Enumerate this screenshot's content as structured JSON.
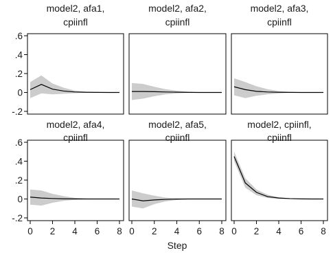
{
  "chart_data": {
    "type": "line",
    "xlabel": "Step",
    "xlim": [
      0,
      8
    ],
    "ylim": [
      -0.2,
      0.6
    ],
    "x_ticks": [
      0,
      2,
      4,
      6,
      8
    ],
    "x_tick_labels": [
      "0",
      "2",
      "4",
      "6",
      "8"
    ],
    "y_ticks": [
      -0.2,
      0,
      0.2,
      0.4,
      0.6
    ],
    "y_tick_labels": [
      "-.2",
      "0",
      ".2",
      ".4",
      ".6"
    ],
    "band_color": "#cccccc",
    "line_color": "#000000",
    "panels": [
      {
        "title_line1": "model2, afa1,",
        "title_line2": "cpiinfl",
        "x": [
          0,
          1,
          2,
          3,
          4,
          5,
          6,
          7,
          8
        ],
        "irf": [
          0.03,
          0.085,
          0.035,
          0.015,
          0.005,
          0.002,
          0.001,
          0,
          0
        ],
        "ci_upper": [
          0.11,
          0.18,
          0.095,
          0.05,
          0.02,
          0.008,
          0.003,
          0.001,
          0.0
        ],
        "ci_lower": [
          -0.06,
          -0.01,
          -0.02,
          -0.015,
          -0.008,
          -0.003,
          -0.001,
          0,
          0
        ]
      },
      {
        "title_line1": "model2, afa2,",
        "title_line2": "cpiinfl",
        "x": [
          0,
          1,
          2,
          3,
          4,
          5,
          6,
          7,
          8
        ],
        "irf": [
          0.01,
          0.01,
          0.008,
          0.005,
          0.003,
          0.001,
          0,
          0,
          0
        ],
        "ci_upper": [
          0.1,
          0.09,
          0.06,
          0.035,
          0.018,
          0.008,
          0.003,
          0.001,
          0.0
        ],
        "ci_lower": [
          -0.08,
          -0.065,
          -0.04,
          -0.02,
          -0.01,
          -0.004,
          -0.001,
          0,
          0
        ]
      },
      {
        "title_line1": "model2, afa3,",
        "title_line2": "cpiinfl",
        "x": [
          0,
          1,
          2,
          3,
          4,
          5,
          6,
          7,
          8
        ],
        "irf": [
          0.06,
          0.03,
          0.012,
          0.005,
          0.002,
          0.001,
          0,
          0,
          0
        ],
        "ci_upper": [
          0.15,
          0.11,
          0.065,
          0.035,
          0.015,
          0.006,
          0.002,
          0.001,
          0.0
        ],
        "ci_lower": [
          -0.03,
          -0.06,
          -0.035,
          -0.02,
          -0.01,
          -0.003,
          -0.001,
          0,
          0
        ]
      },
      {
        "title_line1": "model2, afa4,",
        "title_line2": "cpiinfl",
        "x": [
          0,
          1,
          2,
          3,
          4,
          5,
          6,
          7,
          8
        ],
        "irf": [
          0.02,
          0.01,
          0.005,
          0.002,
          0.001,
          0,
          0,
          0,
          0
        ],
        "ci_upper": [
          0.1,
          0.09,
          0.055,
          0.03,
          0.012,
          0.005,
          0.002,
          0.0,
          0.0
        ],
        "ci_lower": [
          -0.06,
          -0.07,
          -0.04,
          -0.02,
          -0.01,
          -0.004,
          -0.001,
          0,
          0
        ]
      },
      {
        "title_line1": "model2, afa5,",
        "title_line2": "cpiinfl",
        "x": [
          0,
          1,
          2,
          3,
          4,
          5,
          6,
          7,
          8
        ],
        "irf": [
          0.0,
          -0.02,
          -0.01,
          -0.004,
          -0.001,
          0,
          0,
          0,
          0
        ],
        "ci_upper": [
          0.09,
          0.06,
          0.035,
          0.015,
          0.006,
          0.002,
          0.001,
          0.0,
          0.0
        ],
        "ci_lower": [
          -0.08,
          -0.1,
          -0.055,
          -0.025,
          -0.01,
          -0.004,
          -0.001,
          0,
          0
        ]
      },
      {
        "title_line1": "model2, cpiinfl,",
        "title_line2": "cpiinfl",
        "x": [
          0,
          1,
          2,
          3,
          4,
          5,
          6,
          7,
          8
        ],
        "irf": [
          0.45,
          0.17,
          0.07,
          0.025,
          0.01,
          0.004,
          0.001,
          0,
          0
        ],
        "ci_upper": [
          0.5,
          0.22,
          0.1,
          0.045,
          0.018,
          0.007,
          0.003,
          0.001,
          0.0
        ],
        "ci_lower": [
          0.4,
          0.12,
          0.04,
          0.01,
          0.002,
          0,
          0,
          0,
          0
        ]
      }
    ]
  }
}
